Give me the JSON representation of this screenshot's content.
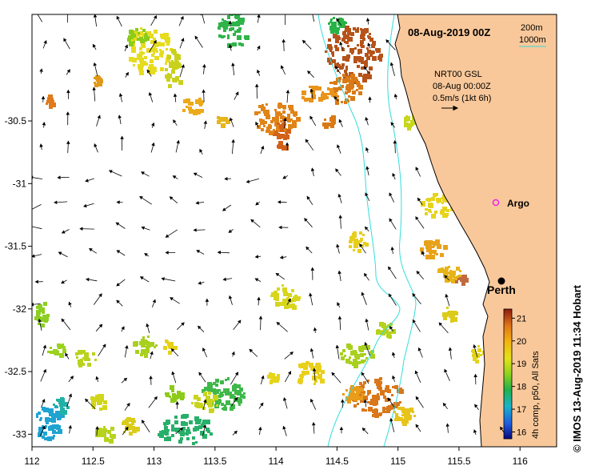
{
  "map": {
    "title": "08-Aug-2019 00Z",
    "lon_range": [
      112,
      116.3
    ],
    "lat_range": [
      -33.1,
      -29.65
    ],
    "lon_ticks": [
      "112",
      "112.5",
      "113",
      "113.5",
      "114",
      "114.5",
      "115",
      "115.5",
      "116"
    ],
    "lat_ticks": [
      "-30.5",
      "-31",
      "-31.5",
      "-32",
      "-32.5",
      "-33"
    ],
    "land_color": "#f9c89a",
    "isobath_color": "#33dddd"
  },
  "isobaths": {
    "shallow_label": "200m",
    "deep_label": "1000m"
  },
  "currents": {
    "line1": "NRT00 GSL",
    "line2": "08-Aug 00:00Z",
    "line3": "0.5m/s (1kt 6h)"
  },
  "places": {
    "argo": "Argo",
    "perth": "Perth"
  },
  "colorbar": {
    "ticks": [
      "21",
      "20",
      "19",
      "18",
      "17",
      "16"
    ],
    "range": [
      15.7,
      21.4
    ],
    "label": "4h comp, p50, All Sats"
  },
  "credit": "© IMOS 13-Aug-2019 11:34 Hobart"
}
